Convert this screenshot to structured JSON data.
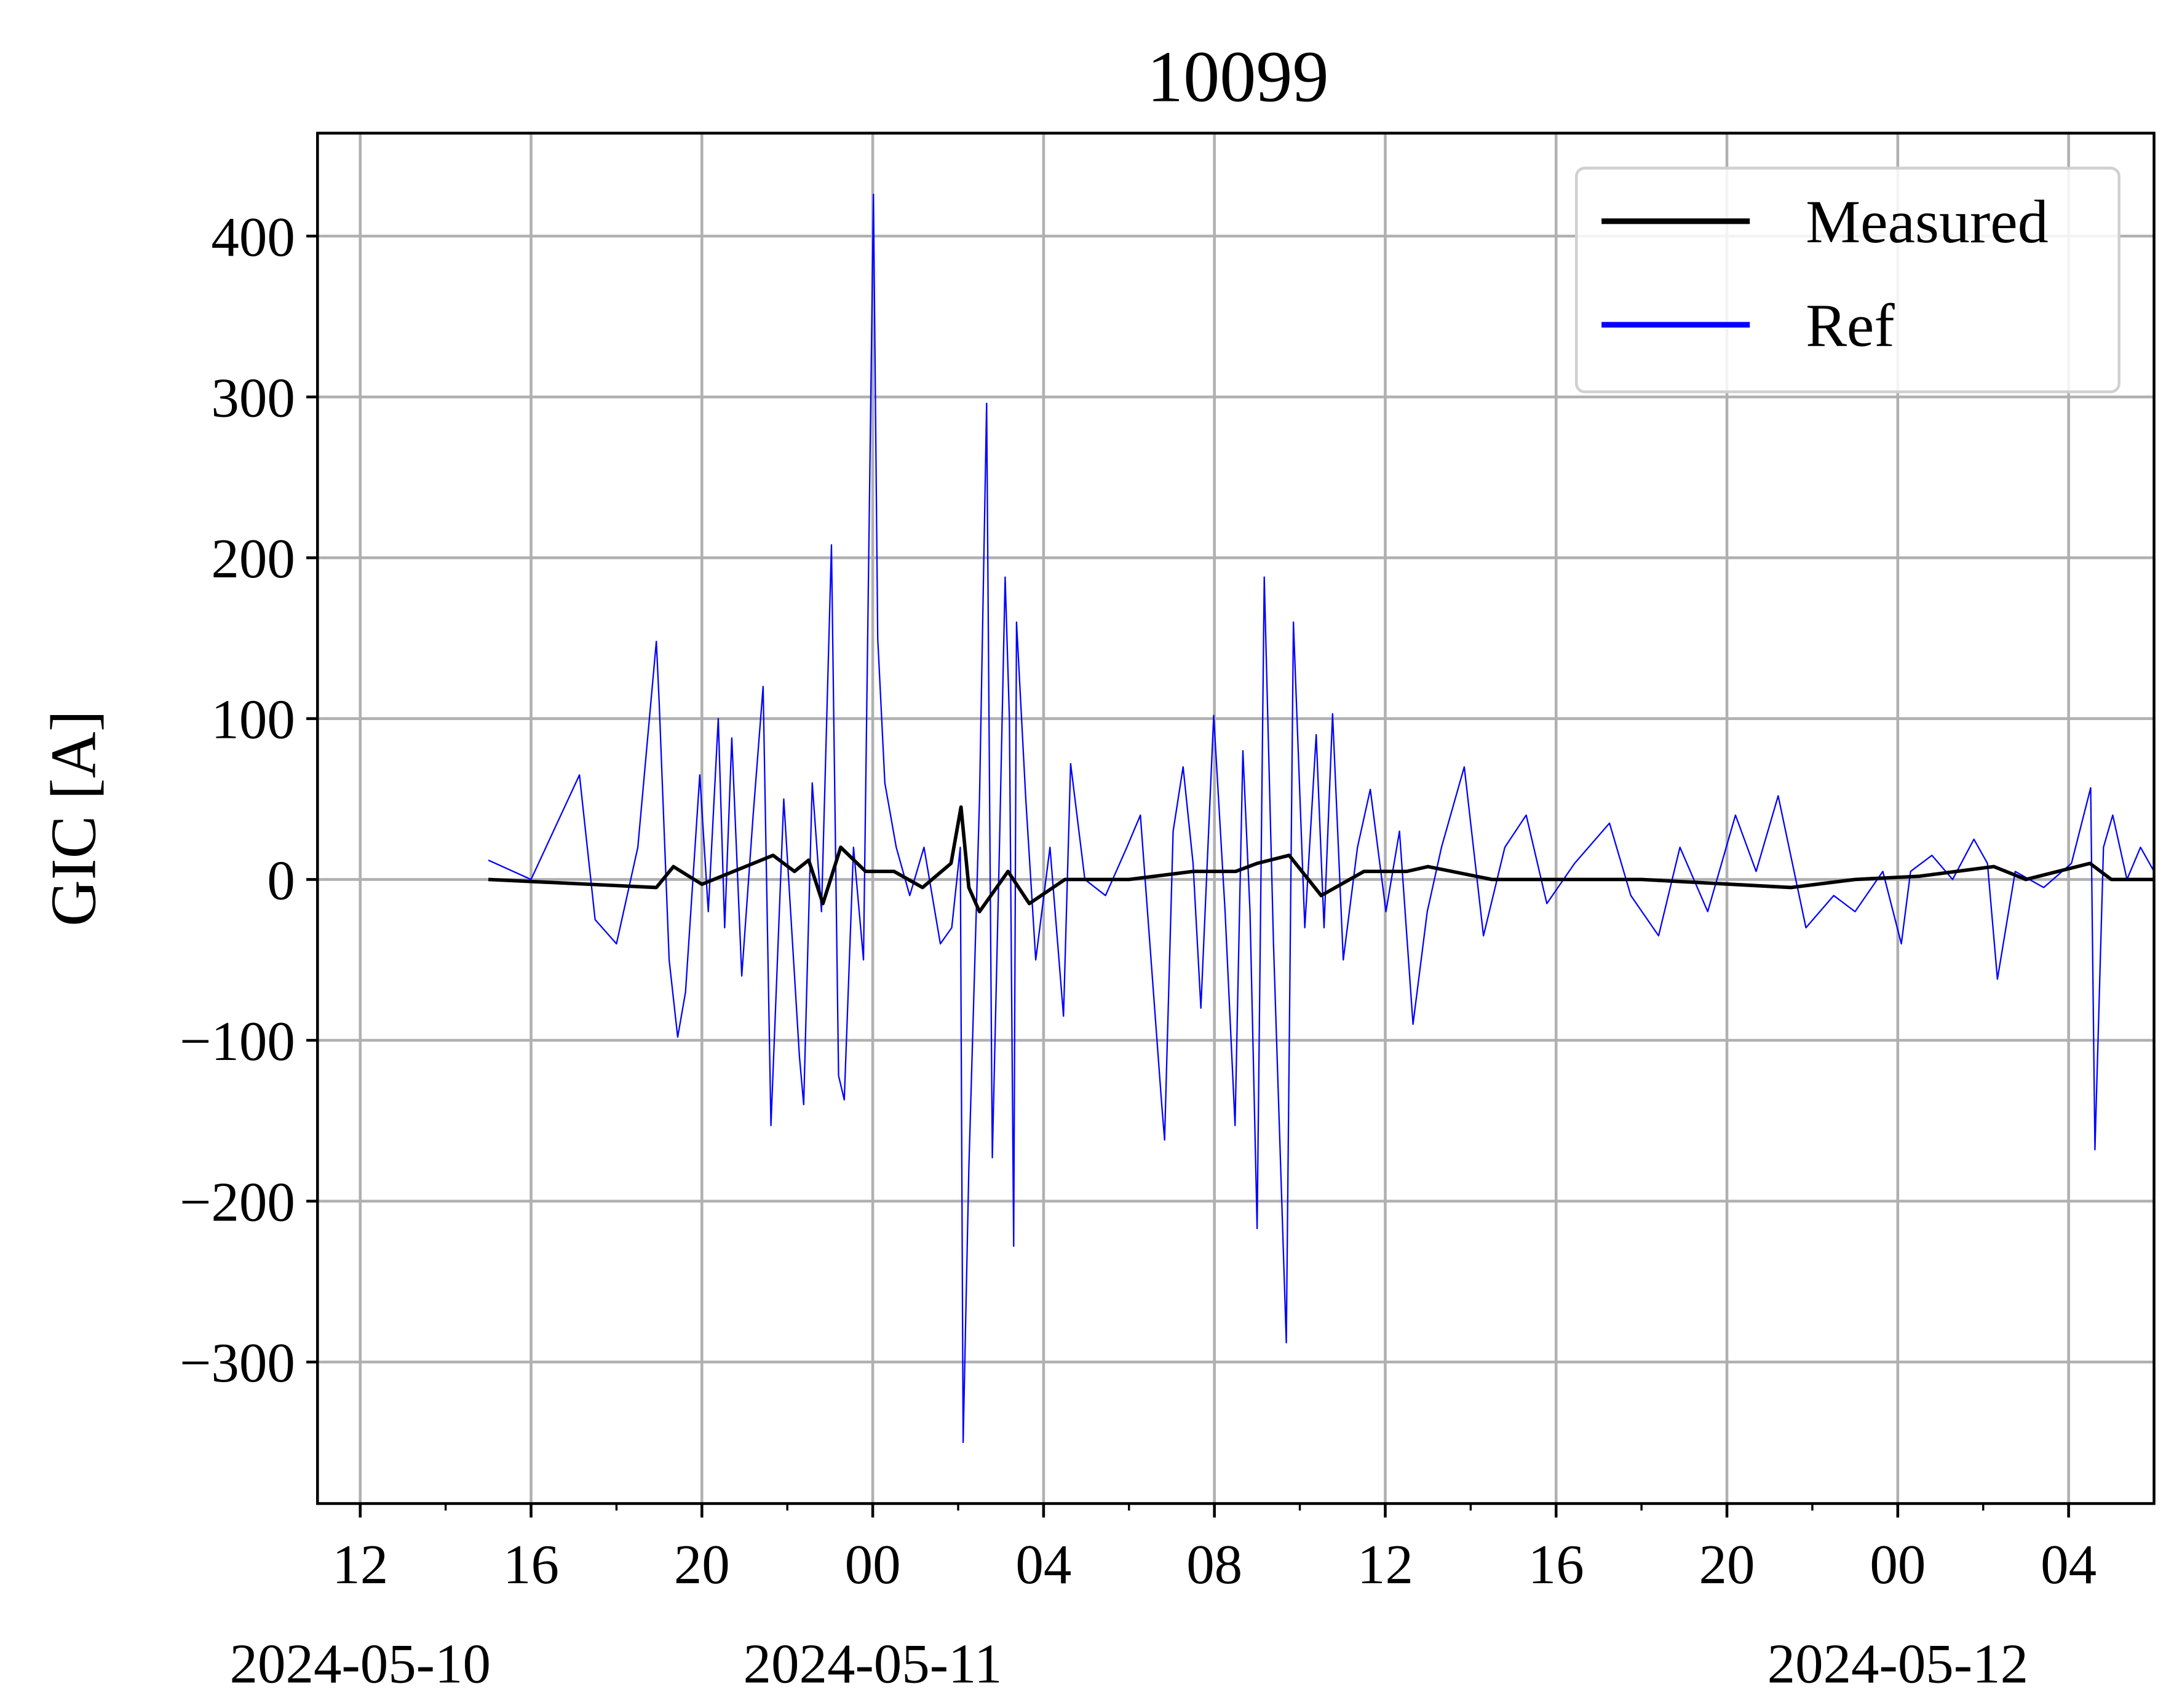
{
  "chart_data": {
    "type": "line",
    "title": "10099",
    "y_label": "GIC [A]",
    "xlim": [
      "2024-05-10 11:00",
      "2024-05-12 06:00"
    ],
    "xticks": [
      {
        "value": "2024-05-10 12:00",
        "label": "12"
      },
      {
        "value": "2024-05-10 16:00",
        "label": "16"
      },
      {
        "value": "2024-05-10 20:00",
        "label": "20"
      },
      {
        "value": "2024-05-11 00:00",
        "label": "00"
      },
      {
        "value": "2024-05-11 04:00",
        "label": "04"
      },
      {
        "value": "2024-05-11 08:00",
        "label": "08"
      },
      {
        "value": "2024-05-11 12:00",
        "label": "12"
      },
      {
        "value": "2024-05-11 16:00",
        "label": "16"
      },
      {
        "value": "2024-05-11 20:00",
        "label": "20"
      },
      {
        "value": "2024-05-12 00:00",
        "label": "00"
      },
      {
        "value": "2024-05-12 04:00",
        "label": "04"
      }
    ],
    "xdatelabels": [
      {
        "value": "2024-05-10 12:00",
        "label": "2024-05-10"
      },
      {
        "value": "2024-05-11 00:00",
        "label": "2024-05-11"
      },
      {
        "value": "2024-05-12 00:00",
        "label": "2024-05-12"
      }
    ],
    "xminorticks": [
      "2024-05-10 14:00",
      "2024-05-10 18:00",
      "2024-05-10 22:00",
      "2024-05-11 02:00",
      "2024-05-11 06:00",
      "2024-05-11 10:00",
      "2024-05-11 14:00",
      "2024-05-11 18:00",
      "2024-05-11 22:00",
      "2024-05-12 02:00"
    ],
    "ylim": [
      -388,
      464
    ],
    "yticks": [
      {
        "value": -300,
        "label": "−300"
      },
      {
        "value": -200,
        "label": "−200"
      },
      {
        "value": -100,
        "label": "−100"
      },
      0,
      100,
      200,
      300,
      400
    ],
    "grid": true,
    "legend": "upper right",
    "series": [
      {
        "name": "Measured",
        "color": "#000000",
        "x": [
          "2024-05-10 15:00",
          "2024-05-10 18:56",
          "2024-05-10 19:20",
          "2024-05-10 20:00",
          "2024-05-10 21:40",
          "2024-05-10 22:10",
          "2024-05-10 22:30",
          "2024-05-10 22:50",
          "2024-05-10 23:15",
          "2024-05-10 23:50",
          "2024-05-11 00:30",
          "2024-05-11 01:10",
          "2024-05-11 01:50",
          "2024-05-11 02:04",
          "2024-05-11 02:15",
          "2024-05-11 02:30",
          "2024-05-11 03:10",
          "2024-05-11 03:40",
          "2024-05-11 04:30",
          "2024-05-11 06:00",
          "2024-05-11 07:30",
          "2024-05-11 08:30",
          "2024-05-11 09:00",
          "2024-05-11 09:45",
          "2024-05-11 10:30",
          "2024-05-11 11:30",
          "2024-05-11 12:30",
          "2024-05-11 13:00",
          "2024-05-11 14:30",
          "2024-05-11 18:00",
          "2024-05-11 21:30",
          "2024-05-11 23:00",
          "2024-05-12 00:30",
          "2024-05-12 02:15",
          "2024-05-12 03:00",
          "2024-05-12 04:30",
          "2024-05-12 05:00",
          "2024-05-12 06:00"
        ],
        "values": [
          0,
          -5,
          8,
          -3,
          15,
          5,
          12,
          -15,
          20,
          5,
          5,
          -5,
          10,
          45,
          -5,
          -20,
          5,
          -15,
          0,
          0,
          5,
          5,
          10,
          15,
          -10,
          5,
          5,
          8,
          0,
          0,
          -5,
          0,
          2,
          8,
          0,
          10,
          0,
          0
        ]
      },
      {
        "name": "Ref",
        "color": "#0000ff",
        "x": [
          "2024-05-10 15:00",
          "2024-05-10 16:00",
          "2024-05-10 17:08",
          "2024-05-10 17:30",
          "2024-05-10 18:00",
          "2024-05-10 18:30",
          "2024-05-10 18:56",
          "2024-05-10 19:00",
          "2024-05-10 19:14",
          "2024-05-10 19:26",
          "2024-05-10 19:37",
          "2024-05-10 19:57",
          "2024-05-10 20:09",
          "2024-05-10 20:23",
          "2024-05-10 20:32",
          "2024-05-10 20:42",
          "2024-05-10 20:56",
          "2024-05-10 21:12",
          "2024-05-10 21:26",
          "2024-05-10 21:37",
          "2024-05-10 21:55",
          "2024-05-10 22:17",
          "2024-05-10 22:23",
          "2024-05-10 22:35",
          "2024-05-10 22:48",
          "2024-05-10 23:02",
          "2024-05-10 23:12",
          "2024-05-10 23:20",
          "2024-05-10 23:33",
          "2024-05-10 23:47",
          "2024-05-11 00:01",
          "2024-05-11 00:07",
          "2024-05-11 00:17",
          "2024-05-11 00:33",
          "2024-05-11 00:52",
          "2024-05-11 01:12",
          "2024-05-11 01:35",
          "2024-05-11 01:51",
          "2024-05-11 02:03",
          "2024-05-11 02:07",
          "2024-05-11 02:15",
          "2024-05-11 02:30",
          "2024-05-11 02:40",
          "2024-05-11 02:48",
          "2024-05-11 02:58",
          "2024-05-11 03:06",
          "2024-05-11 03:12",
          "2024-05-11 03:18",
          "2024-05-11 03:22",
          "2024-05-11 03:35",
          "2024-05-11 03:49",
          "2024-05-11 04:09",
          "2024-05-11 04:28",
          "2024-05-11 04:38",
          "2024-05-11 04:58",
          "2024-05-11 05:27",
          "2024-05-11 05:57",
          "2024-05-11 06:16",
          "2024-05-11 06:46",
          "2024-05-11 06:50",
          "2024-05-11 07:02",
          "2024-05-11 07:16",
          "2024-05-11 07:30",
          "2024-05-11 07:41",
          "2024-05-11 07:59",
          "2024-05-11 08:15",
          "2024-05-11 08:29",
          "2024-05-11 08:40",
          "2024-05-11 08:50",
          "2024-05-11 09:00",
          "2024-05-11 09:10",
          "2024-05-11 09:23",
          "2024-05-11 09:41",
          "2024-05-11 09:51",
          "2024-05-11 10:07",
          "2024-05-11 10:23",
          "2024-05-11 10:34",
          "2024-05-11 10:46",
          "2024-05-11 11:01",
          "2024-05-11 11:21",
          "2024-05-11 11:39",
          "2024-05-11 12:01",
          "2024-05-11 12:20",
          "2024-05-11 12:39",
          "2024-05-11 12:59",
          "2024-05-11 13:19",
          "2024-05-11 13:51",
          "2024-05-11 14:18",
          "2024-05-11 14:48",
          "2024-05-11 15:18",
          "2024-05-11 15:47",
          "2024-05-11 16:26",
          "2024-05-11 17:15",
          "2024-05-11 17:45",
          "2024-05-11 18:24",
          "2024-05-11 18:54",
          "2024-05-11 19:33",
          "2024-05-11 20:12",
          "2024-05-11 20:41",
          "2024-05-11 21:12",
          "2024-05-11 21:51",
          "2024-05-11 22:30",
          "2024-05-11 23:00",
          "2024-05-11 23:39",
          "2024-05-12 00:05",
          "2024-05-12 00:18",
          "2024-05-12 00:48",
          "2024-05-12 01:17",
          "2024-05-12 01:47",
          "2024-05-12 02:06",
          "2024-05-12 02:20",
          "2024-05-12 02:45",
          "2024-05-12 03:25",
          "2024-05-12 04:04",
          "2024-05-12 04:31",
          "2024-05-12 04:37",
          "2024-05-12 04:49",
          "2024-05-12 05:02",
          "2024-05-12 05:22",
          "2024-05-12 05:41",
          "2024-05-12 06:00"
        ],
        "values": [
          12,
          0,
          65,
          -25,
          -40,
          20,
          148,
          110,
          -50,
          -98,
          -70,
          65,
          -20,
          100,
          -30,
          88,
          -60,
          40,
          120,
          -153,
          50,
          -110,
          -140,
          60,
          -20,
          208,
          -122,
          -137,
          20,
          -50,
          426,
          150,
          60,
          20,
          -10,
          20,
          -40,
          -30,
          20,
          -350,
          -180,
          50,
          296,
          -173,
          20,
          188,
          100,
          -228,
          160,
          50,
          -50,
          20,
          -85,
          72,
          0,
          -10,
          20,
          40,
          -140,
          -162,
          30,
          70,
          10,
          -80,
          102,
          -20,
          -153,
          80,
          -20,
          -217,
          188,
          -40,
          -288,
          160,
          -30,
          90,
          -30,
          103,
          -50,
          20,
          56,
          -20,
          30,
          -90,
          -20,
          20,
          70,
          -35,
          20,
          40,
          -15,
          10,
          35,
          -10,
          -35,
          20,
          -20,
          40,
          5,
          52,
          -30,
          -10,
          -20,
          5,
          -40,
          5,
          15,
          0,
          25,
          10,
          -62,
          5,
          -5,
          10,
          57,
          -168,
          20,
          40,
          0,
          20,
          5
        ]
      }
    ]
  }
}
